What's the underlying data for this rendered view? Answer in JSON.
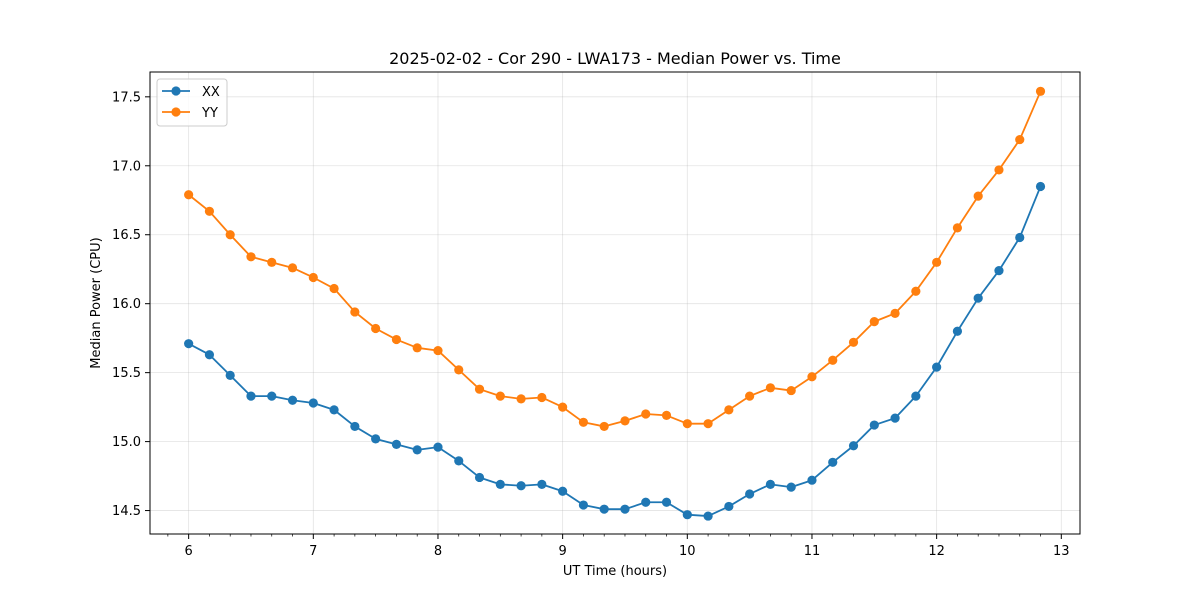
{
  "chart_data": {
    "type": "line",
    "title": "2025-02-02 - Cor 290 - LWA173 - Median Power vs. Time",
    "xlabel": "UT Time (hours)",
    "ylabel": "Median Power (CPU)",
    "xlim": [
      5.69,
      13.15
    ],
    "ylim": [
      14.33,
      17.68
    ],
    "xticks": [
      6,
      7,
      8,
      9,
      10,
      11,
      12,
      13
    ],
    "yticks": [
      14.5,
      15.0,
      15.5,
      16.0,
      16.5,
      17.0,
      17.5
    ],
    "ytick_labels": [
      "14.5",
      "15.0",
      "15.5",
      "16.0",
      "16.5",
      "17.0",
      "17.5"
    ],
    "grid": true,
    "legend_position": "top-left",
    "x": [
      6.0,
      6.1667,
      6.3333,
      6.5,
      6.6667,
      6.8333,
      7.0,
      7.1667,
      7.3333,
      7.5,
      7.6667,
      7.8333,
      8.0,
      8.1667,
      8.3333,
      8.5,
      8.6667,
      8.8333,
      9.0,
      9.1667,
      9.3333,
      9.5,
      9.6667,
      9.8333,
      10.0,
      10.1667,
      10.3333,
      10.5,
      10.6667,
      10.8333,
      11.0,
      11.1667,
      11.3333,
      11.5,
      11.6667,
      11.8333,
      12.0,
      12.1667,
      12.3333,
      12.5,
      12.6667,
      12.8333
    ],
    "series": [
      {
        "name": "XX",
        "color": "#1f77b4",
        "values": [
          15.71,
          15.63,
          15.48,
          15.33,
          15.33,
          15.3,
          15.28,
          15.23,
          15.11,
          15.02,
          14.98,
          14.94,
          14.96,
          14.86,
          14.74,
          14.69,
          14.68,
          14.69,
          14.64,
          14.54,
          14.51,
          14.51,
          14.56,
          14.56,
          14.47,
          14.46,
          14.53,
          14.62,
          14.69,
          14.67,
          14.72,
          14.85,
          14.97,
          15.12,
          15.17,
          15.33,
          15.54,
          15.8,
          16.04,
          16.24,
          16.48,
          16.85
        ]
      },
      {
        "name": "YY",
        "color": "#ff7f0e",
        "values": [
          16.79,
          16.67,
          16.5,
          16.34,
          16.3,
          16.26,
          16.19,
          16.11,
          15.94,
          15.82,
          15.74,
          15.68,
          15.66,
          15.52,
          15.38,
          15.33,
          15.31,
          15.32,
          15.25,
          15.14,
          15.11,
          15.15,
          15.2,
          15.19,
          15.13,
          15.13,
          15.23,
          15.33,
          15.39,
          15.37,
          15.47,
          15.59,
          15.72,
          15.87,
          15.93,
          16.09,
          16.3,
          16.55,
          16.78,
          16.97,
          17.19,
          17.54
        ]
      }
    ]
  }
}
